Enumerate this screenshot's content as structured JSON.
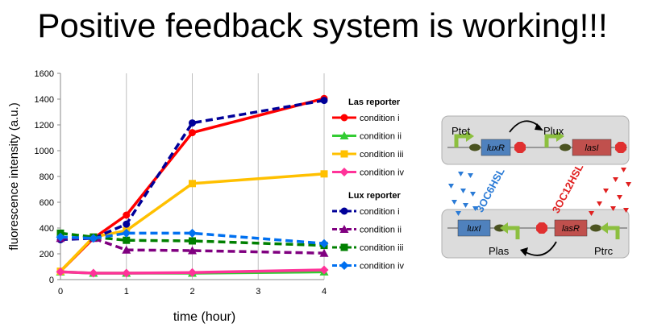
{
  "slide": {
    "title": "Positive feedback system is working!!!"
  },
  "chart_data": {
    "type": "line",
    "xlabel": "time   (hour)",
    "ylabel": "fluorescence intensity   (a.u.)",
    "xlim": [
      0,
      4
    ],
    "ylim": [
      0,
      1600
    ],
    "x_ticks": [
      "0",
      "1",
      "2",
      "3",
      "4"
    ],
    "y_ticks": [
      "0",
      "200",
      "400",
      "600",
      "800",
      "1000",
      "1200",
      "1400",
      "1600"
    ],
    "x": [
      0,
      0.5,
      1,
      2,
      4
    ],
    "grid": "vertical",
    "legend_placement": "right",
    "groups": [
      {
        "title": "Las reporter",
        "series": [
          {
            "name": "condition i",
            "color": "#ff0000",
            "dash": "solid",
            "marker": "circle",
            "values": [
              65,
              320,
              500,
              1140,
              1405
            ]
          },
          {
            "name": "condition ii",
            "color": "#33cc33",
            "dash": "solid",
            "marker": "triangle",
            "values": [
              60,
              50,
              50,
              50,
              60
            ]
          },
          {
            "name": "condition iii",
            "color": "#ffc000",
            "dash": "solid",
            "marker": "square",
            "values": [
              65,
              330,
              380,
              745,
              820
            ]
          },
          {
            "name": "condition iv",
            "color": "#ff3399",
            "dash": "solid",
            "marker": "diamond",
            "values": [
              60,
              50,
              50,
              55,
              75
            ]
          }
        ]
      },
      {
        "title": "Lux reporter",
        "series": [
          {
            "name": "condition i",
            "color": "#000099",
            "dash": "dashed",
            "marker": "circle",
            "values": [
              310,
              320,
              430,
              1215,
              1390
            ]
          },
          {
            "name": "condition ii",
            "color": "#800080",
            "dash": "dashed",
            "marker": "triangle",
            "values": [
              320,
              320,
              230,
              225,
              205
            ]
          },
          {
            "name": "condition iii",
            "color": "#008000",
            "dash": "dashed",
            "marker": "square",
            "values": [
              360,
              330,
              305,
              300,
              265
            ]
          },
          {
            "name": "condition iv",
            "color": "#0070f0",
            "dash": "dashed",
            "marker": "diamond",
            "values": [
              330,
              320,
              360,
              360,
              280
            ]
          }
        ]
      }
    ]
  },
  "diagram": {
    "promoters": {
      "ptet": "Ptet",
      "plux": "Plux",
      "plas": "Plas",
      "ptrc": "Ptrc"
    },
    "genes": {
      "luxR": "luxR",
      "lasI": "lasI",
      "luxI": "luxI",
      "lasR": "lasR"
    },
    "signals": {
      "oc6": "3OC6HSL",
      "oc12": "3OC12HSL"
    },
    "colors": {
      "blue_gene": "#4f81bd",
      "red_gene": "#c0504d",
      "promoter_arrow": "#8cbf3f",
      "rbs": "#4b5320",
      "terminator": "#e03030",
      "box": "#dcdcdc",
      "oc6": "#2b7bd6",
      "oc12": "#e02020"
    }
  }
}
